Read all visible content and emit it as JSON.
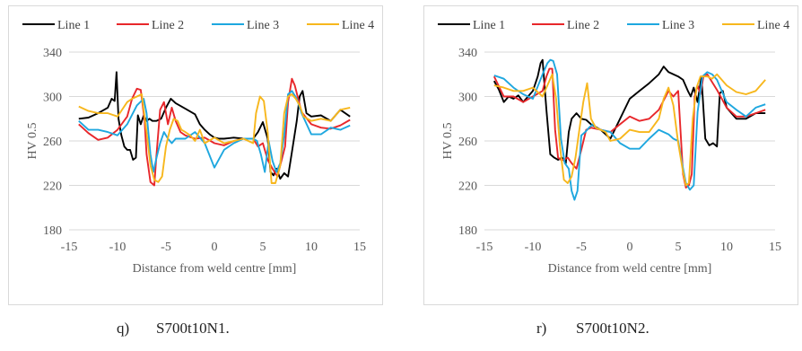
{
  "chart_data": [
    {
      "type": "line",
      "caption_label": "q)",
      "caption_text": "S700t10N1.",
      "xlabel": "Distance from weld centre [mm]",
      "ylabel": "HV 0.5",
      "xlim": [
        -15,
        15
      ],
      "ylim": [
        180,
        340
      ],
      "xticks": [
        -15,
        -10,
        -5,
        0,
        5,
        10,
        15
      ],
      "yticks": [
        180,
        220,
        260,
        300,
        340
      ],
      "grid": "horizontal",
      "legend_position": "top",
      "series": [
        {
          "name": "Line 1",
          "color": "#000000",
          "x": [
            -14,
            -13,
            -12,
            -11,
            -10.6,
            -10.3,
            -10.1,
            -9.9,
            -9.6,
            -9.3,
            -9.0,
            -8.7,
            -8.4,
            -8.1,
            -7.9,
            -7.6,
            -7.3,
            -7.0,
            -6.7,
            -6.4,
            -6.0,
            -5.5,
            -5.0,
            -4.5,
            -4.0,
            -3.0,
            -2.0,
            -1.5,
            -1.0,
            -0.5,
            0,
            0.5,
            1,
            2,
            3,
            4,
            4.5,
            5,
            5.5,
            5.8,
            6.1,
            6.4,
            6.8,
            7.2,
            7.6,
            8.0,
            8.5,
            8.8,
            9.1,
            9.5,
            10,
            11,
            12,
            13,
            14
          ],
          "y": [
            280,
            281,
            285,
            290,
            298,
            296,
            322,
            280,
            265,
            255,
            252,
            252,
            243,
            245,
            283,
            275,
            283,
            278,
            280,
            278,
            278,
            280,
            290,
            298,
            294,
            289,
            284,
            275,
            270,
            266,
            263,
            262,
            262,
            263,
            262,
            262,
            268,
            277,
            262,
            232,
            229,
            235,
            226,
            231,
            228,
            250,
            278,
            300,
            305,
            285,
            282,
            283,
            278,
            288,
            282
          ]
        },
        {
          "name": "Line 2",
          "color": "#e8272b",
          "x": [
            -14,
            -13,
            -12,
            -11,
            -10,
            -9,
            -8.5,
            -8,
            -7.6,
            -7.2,
            -7,
            -6.6,
            -6.2,
            -6.0,
            -5.6,
            -5.2,
            -4.8,
            -4.4,
            -4,
            -3.5,
            -3,
            -2,
            -1,
            0,
            1,
            2,
            3,
            4,
            4.5,
            5,
            5.5,
            6,
            6.5,
            7,
            7.3,
            7.6,
            8,
            8.3,
            9,
            10,
            11,
            12,
            13,
            14
          ],
          "y": [
            275,
            267,
            261,
            263,
            270,
            282,
            298,
            307,
            306,
            278,
            248,
            223,
            220,
            245,
            288,
            295,
            275,
            290,
            278,
            268,
            265,
            262,
            263,
            258,
            256,
            260,
            262,
            262,
            255,
            258,
            243,
            235,
            228,
            245,
            255,
            295,
            316,
            310,
            286,
            275,
            272,
            271,
            274,
            279
          ]
        },
        {
          "name": "Line 3",
          "color": "#1ea7df",
          "x": [
            -14,
            -13,
            -12,
            -11,
            -10,
            -9,
            -8,
            -7.3,
            -7.0,
            -6.6,
            -6.3,
            -6.0,
            -5.6,
            -5.2,
            -4.8,
            -4.4,
            -4,
            -3,
            -2,
            -1,
            0,
            1,
            2,
            3,
            4,
            4.4,
            4.8,
            5.2,
            5.6,
            6,
            6.4,
            6.8,
            7.2,
            7.6,
            8,
            8.5,
            9,
            10,
            11,
            12,
            13,
            14
          ],
          "y": [
            278,
            270,
            270,
            268,
            265,
            275,
            292,
            298,
            285,
            248,
            232,
            244,
            258,
            268,
            262,
            258,
            262,
            262,
            268,
            258,
            236,
            252,
            258,
            262,
            262,
            260,
            248,
            232,
            260,
            242,
            232,
            240,
            265,
            302,
            305,
            298,
            285,
            266,
            266,
            272,
            270,
            274
          ]
        },
        {
          "name": "Line 4",
          "color": "#f7b71d",
          "x": [
            -14,
            -13,
            -12,
            -11,
            -10,
            -9,
            -8.5,
            -8,
            -7.5,
            -7,
            -6.6,
            -6.2,
            -5.8,
            -5.4,
            -5.0,
            -4.6,
            -4.2,
            -3.8,
            -3.4,
            -3,
            -2.5,
            -2,
            -1.5,
            -1,
            0,
            1,
            2,
            3,
            4,
            4.3,
            4.7,
            5.1,
            5.5,
            5.9,
            6.3,
            6.8,
            7.2,
            7.6,
            8,
            8.4,
            8.8,
            9.2,
            10,
            11,
            12,
            13,
            14
          ],
          "y": [
            291,
            287,
            285,
            285,
            282,
            295,
            298,
            300,
            302,
            268,
            238,
            225,
            223,
            228,
            255,
            270,
            280,
            278,
            270,
            268,
            265,
            260,
            270,
            258,
            263,
            258,
            260,
            262,
            258,
            285,
            300,
            296,
            268,
            222,
            222,
            238,
            285,
            300,
            302,
            298,
            292,
            282,
            278,
            280,
            278,
            288,
            290
          ]
        }
      ]
    },
    {
      "type": "line",
      "caption_label": "r)",
      "caption_text": "S700t10N2.",
      "xlabel": "Distance from weld centre [mm]",
      "ylabel": "HV 0.5",
      "xlim": [
        -15,
        15
      ],
      "ylim": [
        180,
        340
      ],
      "xticks": [
        -15,
        -10,
        -5,
        0,
        5,
        10,
        15
      ],
      "yticks": [
        180,
        220,
        260,
        300,
        340
      ],
      "grid": "horizontal",
      "legend_position": "top",
      "series": [
        {
          "name": "Line 1",
          "color": "#000000",
          "x": [
            -14,
            -13.5,
            -13,
            -12.5,
            -12,
            -11.5,
            -11,
            -10.5,
            -10,
            -9.5,
            -9.2,
            -9.0,
            -8.6,
            -8.2,
            -7.8,
            -7.4,
            -7,
            -6.6,
            -6.3,
            -6.0,
            -5.5,
            -5,
            -4.5,
            -4,
            -3,
            -2,
            -1,
            0,
            1,
            2,
            3,
            3.5,
            4,
            5,
            5.5,
            6,
            6.3,
            6.6,
            7,
            7.4,
            7.8,
            8.2,
            8.6,
            9,
            9.3,
            9.6,
            10,
            11,
            12,
            13,
            14
          ],
          "y": [
            314,
            306,
            295,
            300,
            298,
            301,
            295,
            300,
            305,
            318,
            330,
            333,
            288,
            248,
            245,
            243,
            245,
            240,
            268,
            280,
            285,
            280,
            279,
            275,
            270,
            262,
            280,
            298,
            305,
            312,
            320,
            327,
            322,
            318,
            315,
            305,
            300,
            308,
            295,
            318,
            262,
            256,
            258,
            255,
            303,
            305,
            290,
            280,
            280,
            285,
            285
          ]
        },
        {
          "name": "Line 2",
          "color": "#e8272b",
          "x": [
            -14,
            -13,
            -12,
            -11,
            -10,
            -9,
            -8.6,
            -8.3,
            -8.0,
            -7.7,
            -7.4,
            -7.1,
            -6.8,
            -6.4,
            -6.0,
            -5.5,
            -5,
            -4.5,
            -4,
            -3,
            -2,
            -1,
            0,
            1,
            2,
            3,
            4,
            4.5,
            5,
            5.5,
            5.8,
            6.1,
            6.4,
            6.7,
            7,
            7.3,
            7.6,
            8,
            9,
            10,
            11,
            12,
            13,
            14
          ],
          "y": [
            318,
            300,
            300,
            295,
            300,
            305,
            318,
            325,
            325,
            270,
            245,
            243,
            243,
            245,
            240,
            235,
            252,
            270,
            272,
            270,
            268,
            275,
            282,
            278,
            280,
            288,
            305,
            300,
            305,
            230,
            218,
            220,
            230,
            300,
            310,
            302,
            318,
            320,
            306,
            290,
            282,
            282,
            285,
            288
          ]
        },
        {
          "name": "Line 3",
          "color": "#1ea7df",
          "x": [
            -14,
            -13,
            -12,
            -11,
            -10,
            -9,
            -8.5,
            -8.2,
            -7.9,
            -7.5,
            -7.1,
            -6.7,
            -6.3,
            -6.0,
            -5.7,
            -5.4,
            -5.0,
            -4.6,
            -4.2,
            -3.8,
            -3.5,
            -3,
            -2,
            -1,
            0,
            1,
            2,
            3,
            4,
            4.5,
            5,
            5.4,
            5.8,
            6.2,
            6.6,
            7,
            7.5,
            8,
            8.5,
            9,
            10,
            11,
            12,
            13,
            14
          ],
          "y": [
            319,
            316,
            308,
            302,
            298,
            320,
            330,
            333,
            332,
            320,
            262,
            240,
            235,
            215,
            207,
            215,
            265,
            268,
            272,
            275,
            272,
            270,
            268,
            258,
            253,
            253,
            262,
            270,
            266,
            262,
            260,
            240,
            222,
            216,
            220,
            286,
            318,
            322,
            320,
            315,
            295,
            288,
            282,
            290,
            293
          ]
        },
        {
          "name": "Line 4",
          "color": "#f7b71d",
          "x": [
            -14,
            -13,
            -12,
            -11,
            -10,
            -9,
            -8.5,
            -8,
            -7.6,
            -7.2,
            -6.8,
            -6.4,
            -6.0,
            -5.6,
            -5.2,
            -4.8,
            -4.4,
            -4,
            -3.5,
            -3,
            -2.5,
            -2,
            -1,
            0,
            1,
            2,
            3,
            3.5,
            4,
            4.5,
            5,
            5.5,
            5.8,
            6.1,
            6.5,
            6.9,
            7.3,
            7.7,
            8,
            8.5,
            9,
            10,
            11,
            12,
            13,
            14
          ],
          "y": [
            310,
            308,
            305,
            305,
            308,
            300,
            310,
            320,
            298,
            255,
            225,
            222,
            228,
            245,
            270,
            295,
            312,
            280,
            272,
            270,
            268,
            260,
            262,
            270,
            268,
            268,
            280,
            298,
            308,
            292,
            258,
            232,
            220,
            222,
            280,
            308,
            318,
            318,
            318,
            316,
            320,
            310,
            304,
            302,
            305,
            315
          ]
        }
      ]
    }
  ]
}
